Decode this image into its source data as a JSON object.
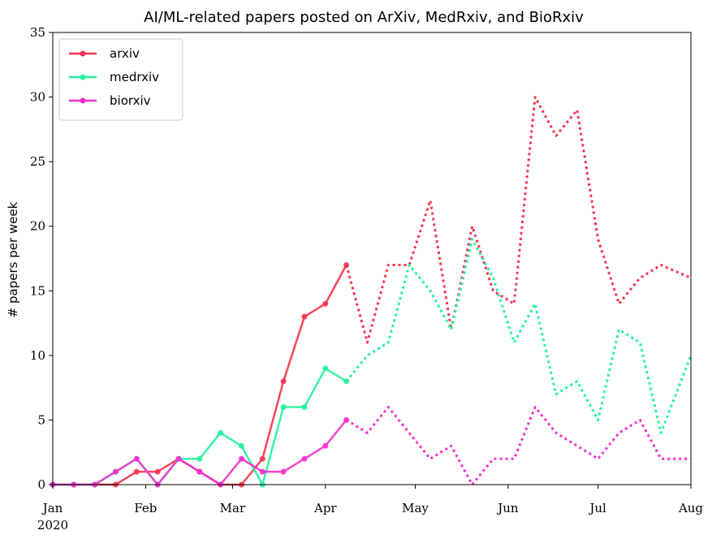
{
  "chart_data": {
    "type": "line",
    "title": "AI/ML-related papers posted on ArXiv, MedRxiv, and BioRxiv",
    "ylabel": "# papers per week",
    "xlabel": "",
    "ylim": [
      0,
      35
    ],
    "yticks": [
      0,
      5,
      10,
      15,
      20,
      25,
      30,
      35
    ],
    "xticks": [
      {
        "date": "2020-01-01",
        "label": "Jan",
        "sublabel": "2020"
      },
      {
        "date": "2020-02-01",
        "label": "Feb",
        "sublabel": ""
      },
      {
        "date": "2020-03-01",
        "label": "Mar",
        "sublabel": ""
      },
      {
        "date": "2020-04-01",
        "label": "Apr",
        "sublabel": ""
      },
      {
        "date": "2020-05-01",
        "label": "May",
        "sublabel": ""
      },
      {
        "date": "2020-06-01",
        "label": "Jun",
        "sublabel": ""
      },
      {
        "date": "2020-07-01",
        "label": "Jul",
        "sublabel": ""
      },
      {
        "date": "2020-08-01",
        "label": "Aug",
        "sublabel": ""
      }
    ],
    "xlim": [
      "2020-01-01",
      "2020-08-01"
    ],
    "legend_position": "top-left",
    "grid": false,
    "series": [
      {
        "name": "arxiv",
        "color": "#f5334d",
        "solid": [
          [
            "2020-01-01",
            0
          ],
          [
            "2020-01-08",
            0
          ],
          [
            "2020-01-15",
            0
          ],
          [
            "2020-01-22",
            0
          ],
          [
            "2020-01-29",
            1
          ],
          [
            "2020-02-05",
            1
          ],
          [
            "2020-02-12",
            2
          ],
          [
            "2020-02-19",
            1
          ],
          [
            "2020-02-26",
            0
          ],
          [
            "2020-03-04",
            0
          ],
          [
            "2020-03-11",
            2
          ],
          [
            "2020-03-18",
            8
          ],
          [
            "2020-03-25",
            13
          ],
          [
            "2020-04-01",
            14
          ],
          [
            "2020-04-08",
            17
          ]
        ],
        "dotted": [
          [
            "2020-04-08",
            17
          ],
          [
            "2020-04-15",
            11
          ],
          [
            "2020-04-22",
            17
          ],
          [
            "2020-04-29",
            17
          ],
          [
            "2020-05-06",
            22
          ],
          [
            "2020-05-13",
            12
          ],
          [
            "2020-05-20",
            20
          ],
          [
            "2020-05-27",
            15
          ],
          [
            "2020-06-03",
            14
          ],
          [
            "2020-06-10",
            30
          ],
          [
            "2020-06-17",
            27
          ],
          [
            "2020-06-24",
            29
          ],
          [
            "2020-07-01",
            19
          ],
          [
            "2020-07-08",
            14
          ],
          [
            "2020-07-15",
            16
          ],
          [
            "2020-07-22",
            17
          ],
          [
            "2020-08-01",
            16
          ]
        ]
      },
      {
        "name": "medrxiv",
        "color": "#22f29c",
        "solid": [
          [
            "2020-01-01",
            0
          ],
          [
            "2020-01-08",
            0
          ],
          [
            "2020-01-15",
            0
          ],
          [
            "2020-01-22",
            1
          ],
          [
            "2020-01-29",
            2
          ],
          [
            "2020-02-05",
            0
          ],
          [
            "2020-02-12",
            2
          ],
          [
            "2020-02-19",
            2
          ],
          [
            "2020-02-26",
            4
          ],
          [
            "2020-03-04",
            3
          ],
          [
            "2020-03-11",
            0
          ],
          [
            "2020-03-18",
            6
          ],
          [
            "2020-03-25",
            6
          ],
          [
            "2020-04-01",
            9
          ],
          [
            "2020-04-08",
            8
          ]
        ],
        "dotted": [
          [
            "2020-04-08",
            8
          ],
          [
            "2020-04-15",
            10
          ],
          [
            "2020-04-22",
            11
          ],
          [
            "2020-04-29",
            17
          ],
          [
            "2020-05-06",
            15
          ],
          [
            "2020-05-13",
            12
          ],
          [
            "2020-05-20",
            19
          ],
          [
            "2020-05-27",
            16
          ],
          [
            "2020-06-03",
            11
          ],
          [
            "2020-06-10",
            14
          ],
          [
            "2020-06-17",
            7
          ],
          [
            "2020-06-24",
            8
          ],
          [
            "2020-07-01",
            5
          ],
          [
            "2020-07-08",
            12
          ],
          [
            "2020-07-15",
            11
          ],
          [
            "2020-07-22",
            4
          ],
          [
            "2020-08-01",
            10
          ]
        ]
      },
      {
        "name": "biorxiv",
        "color": "#f52fce",
        "solid": [
          [
            "2020-01-01",
            0
          ],
          [
            "2020-01-08",
            0
          ],
          [
            "2020-01-15",
            0
          ],
          [
            "2020-01-22",
            1
          ],
          [
            "2020-01-29",
            2
          ],
          [
            "2020-02-05",
            0
          ],
          [
            "2020-02-12",
            2
          ],
          [
            "2020-02-19",
            1
          ],
          [
            "2020-02-26",
            0
          ],
          [
            "2020-03-04",
            2
          ],
          [
            "2020-03-11",
            1
          ],
          [
            "2020-03-18",
            1
          ],
          [
            "2020-03-25",
            2
          ],
          [
            "2020-04-01",
            3
          ],
          [
            "2020-04-08",
            5
          ]
        ],
        "dotted": [
          [
            "2020-04-08",
            5
          ],
          [
            "2020-04-15",
            4
          ],
          [
            "2020-04-22",
            6
          ],
          [
            "2020-04-29",
            4
          ],
          [
            "2020-05-06",
            2
          ],
          [
            "2020-05-13",
            3
          ],
          [
            "2020-05-20",
            0
          ],
          [
            "2020-05-27",
            2
          ],
          [
            "2020-06-03",
            2
          ],
          [
            "2020-06-10",
            6
          ],
          [
            "2020-06-17",
            4
          ],
          [
            "2020-06-24",
            3
          ],
          [
            "2020-07-01",
            2
          ],
          [
            "2020-07-08",
            4
          ],
          [
            "2020-07-15",
            5
          ],
          [
            "2020-07-22",
            2
          ],
          [
            "2020-08-01",
            2
          ]
        ]
      }
    ]
  }
}
